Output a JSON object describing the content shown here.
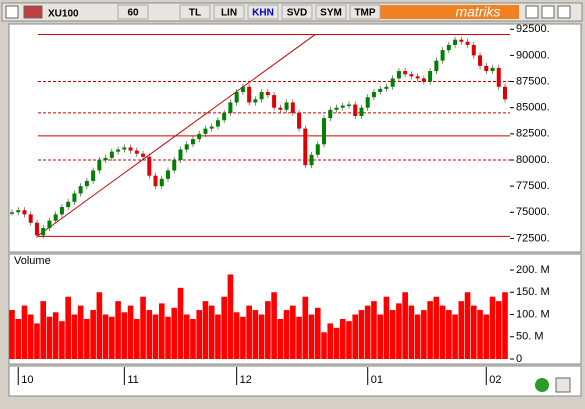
{
  "toolbar": {
    "symbol": "XU100",
    "buttons": [
      "60",
      "TL",
      "LIN",
      "KHN",
      "SVD",
      "SYM",
      "TMP"
    ],
    "brand": "matriks"
  },
  "chart_data": [
    {
      "type": "line",
      "values": [
        75000,
        75200,
        74800,
        74000,
        72800,
        73500,
        74200,
        74800,
        75500,
        76000,
        76800,
        77500,
        78000,
        79000,
        80000,
        80200,
        80800,
        81000,
        81200,
        80900,
        80600,
        80300,
        78500,
        77500,
        78200,
        79000,
        80000,
        81000,
        81500,
        82000,
        82500,
        83000,
        83200,
        83800,
        84500,
        85500,
        86500,
        87000,
        85500,
        85800,
        86500,
        86200,
        85000,
        84800,
        85500,
        84500,
        83000,
        79500,
        80500,
        81500,
        84000,
        84800,
        85000,
        85200,
        85300,
        84200,
        85000,
        86000,
        86500,
        86800,
        87000,
        87800,
        88500,
        88200,
        88000,
        87800,
        87500,
        88500,
        89500,
        90500,
        91000,
        91500,
        91300,
        91000,
        90000,
        89000,
        88500,
        88800,
        87000,
        85800
      ],
      "up_color": "#008000",
      "down_color": "#e00000",
      "ylim": [
        71300,
        93000
      ],
      "yticks": [
        {
          "value": 72500,
          "label": "72500."
        },
        {
          "value": 75000,
          "label": "75000."
        },
        {
          "value": 77500,
          "label": "77500."
        },
        {
          "value": 80000,
          "label": "80000."
        },
        {
          "value": 82500,
          "label": "82500."
        },
        {
          "value": 85000,
          "label": "85000."
        },
        {
          "value": 87500,
          "label": "87500."
        },
        {
          "value": 90000,
          "label": "90000."
        },
        {
          "value": 92500,
          "label": "92500."
        }
      ],
      "hlines": [
        {
          "value": 92000,
          "style": "solid"
        },
        {
          "value": 87500,
          "style": "dashed"
        },
        {
          "value": 84500,
          "style": "dashed"
        },
        {
          "value": 82300,
          "style": "solid"
        },
        {
          "value": 80000,
          "style": "dashed"
        },
        {
          "value": 72700,
          "style": "solid"
        }
      ],
      "trendline": {
        "x": [
          4,
          48.6
        ],
        "y": [
          72700,
          92000
        ]
      },
      "line_color": "#cc0000"
    },
    {
      "type": "bar",
      "title": "Volume",
      "color": "#ff0000",
      "values": [
        110,
        90,
        120,
        100,
        80,
        130,
        95,
        105,
        85,
        140,
        100,
        120,
        90,
        110,
        150,
        100,
        95,
        130,
        105,
        120,
        90,
        140,
        110,
        100,
        125,
        95,
        115,
        160,
        100,
        90,
        110,
        130,
        120,
        100,
        140,
        190,
        105,
        95,
        120,
        110,
        100,
        130,
        150,
        90,
        110,
        120,
        95,
        140,
        100,
        115,
        60,
        80,
        70,
        90,
        85,
        100,
        110,
        120,
        130,
        100,
        140,
        110,
        125,
        150,
        120,
        100,
        110,
        130,
        140,
        120,
        110,
        100,
        130,
        150,
        120,
        110,
        100,
        140,
        130,
        150
      ],
      "ylim": [
        0,
        236
      ],
      "yticks": [
        0,
        {
          "value": 50,
          "label": "50. M"
        },
        {
          "value": 100,
          "label": "100. M"
        },
        {
          "value": 150,
          "label": "150. M"
        },
        {
          "value": 200,
          "label": "200. M"
        }
      ],
      "xticks": [
        {
          "value": 1,
          "label": "10"
        },
        {
          "value": 18,
          "label": "11"
        },
        {
          "value": 36,
          "label": "12"
        },
        {
          "value": 57,
          "label": "01"
        },
        {
          "value": 76,
          "label": "02"
        }
      ]
    }
  ]
}
